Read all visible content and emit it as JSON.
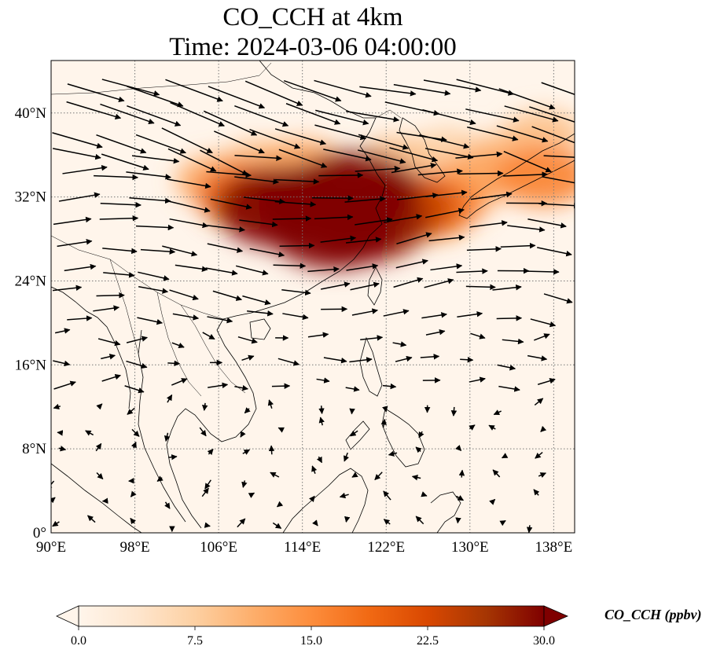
{
  "title": {
    "line1": "CO_CCH at 4km",
    "line2": "Time: 2024-03-06 04:00:00"
  },
  "map": {
    "lon_range": [
      90,
      140
    ],
    "lat_range": [
      0,
      45
    ],
    "x_ticks": [
      {
        "value": 90,
        "label": "90°E"
      },
      {
        "value": 98,
        "label": "98°E"
      },
      {
        "value": 106,
        "label": "106°E"
      },
      {
        "value": 114,
        "label": "114°E"
      },
      {
        "value": 122,
        "label": "122°E"
      },
      {
        "value": 130,
        "label": "130°E"
      },
      {
        "value": 138,
        "label": "138°E"
      }
    ],
    "y_ticks": [
      {
        "value": 0,
        "label": "0°"
      },
      {
        "value": 8,
        "label": "8°N"
      },
      {
        "value": 16,
        "label": "16°N"
      },
      {
        "value": 24,
        "label": "24°N"
      },
      {
        "value": 32,
        "label": "32°N"
      },
      {
        "value": 40,
        "label": "40°N"
      }
    ],
    "gridlines": true,
    "background_color": "#fff5eb",
    "field_variable": "CO_CCH",
    "plume": [
      {
        "lon": 106,
        "lat": 33.5,
        "value": 12
      },
      {
        "lon": 109,
        "lat": 32,
        "value": 20
      },
      {
        "lon": 112,
        "lat": 31,
        "value": 30
      },
      {
        "lon": 116,
        "lat": 31.5,
        "value": 30
      },
      {
        "lon": 119,
        "lat": 32.5,
        "value": 30
      },
      {
        "lon": 117,
        "lat": 29,
        "value": 30
      },
      {
        "lon": 120,
        "lat": 29.5,
        "value": 28
      },
      {
        "lon": 123,
        "lat": 31,
        "value": 24
      },
      {
        "lon": 126,
        "lat": 31,
        "value": 18
      },
      {
        "lon": 128,
        "lat": 32,
        "value": 13
      },
      {
        "lon": 131,
        "lat": 34,
        "value": 12
      },
      {
        "lon": 134,
        "lat": 36,
        "value": 10
      },
      {
        "lon": 137,
        "lat": 38,
        "value": 9
      },
      {
        "lon": 137,
        "lat": 34,
        "value": 16
      },
      {
        "lon": 110,
        "lat": 35,
        "value": 10
      },
      {
        "lon": 114,
        "lat": 35,
        "value": 12
      },
      {
        "lon": 123,
        "lat": 35.5,
        "value": 9
      },
      {
        "lon": 128,
        "lat": 36.5,
        "value": 7
      }
    ],
    "wind_vectors": {
      "lon_spacing": 3.5,
      "lat_spacing": 2.2
    }
  },
  "colorbar": {
    "label": "CO_CCH (ppbv)",
    "min": 0,
    "max": 30,
    "ticks": [
      "0.0",
      "7.5",
      "15.0",
      "22.5",
      "30.0"
    ],
    "colormap": [
      "#fff5eb",
      "#fee6ce",
      "#fdd0a2",
      "#fdae6b",
      "#fd8d3c",
      "#f16913",
      "#d94801",
      "#a63603",
      "#7f0000"
    ],
    "extend": "both"
  }
}
